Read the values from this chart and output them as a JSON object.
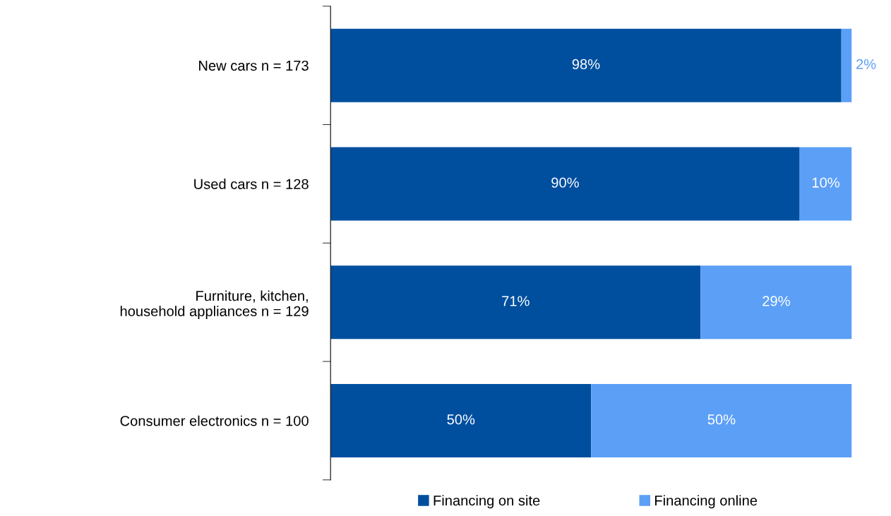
{
  "chart_data": {
    "type": "bar",
    "orientation": "horizontal",
    "stacked": true,
    "categories": [
      "New cars n = 173",
      "Used cars n = 128",
      "Furniture, kitchen,\nhousehold appliances n = 129",
      "Consumer electronics n = 100"
    ],
    "series": [
      {
        "name": "Financing on site",
        "color": "#004f9f",
        "values": [
          98,
          90,
          71,
          50
        ],
        "value_labels": [
          "98%",
          "90%",
          "71%",
          "50%"
        ]
      },
      {
        "name": "Financing online",
        "color": "#5c9ff7",
        "values": [
          2,
          10,
          29,
          50
        ],
        "value_labels": [
          "2%",
          "10%",
          "29%",
          "50%"
        ]
      }
    ],
    "tick_labels": "y",
    "legend": "bottom",
    "grid": false
  }
}
